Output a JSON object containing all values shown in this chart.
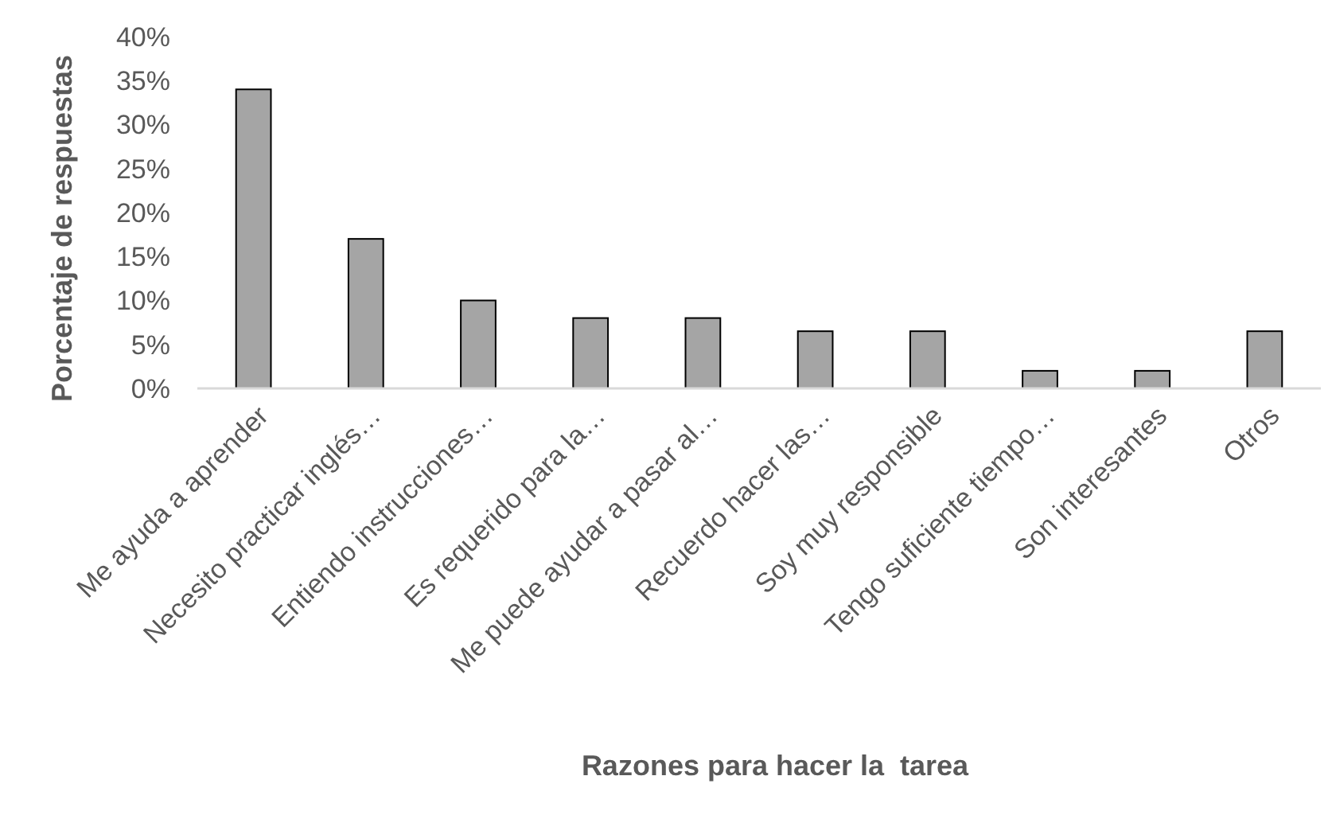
{
  "chart_data": {
    "type": "bar",
    "xlabel": "Razones para hacer la  tarea",
    "ylabel": "Porcentaje de respuestas",
    "categories": [
      "Me ayuda a aprender",
      "Necesito practicar inglés…",
      "Entiendo instrucciones…",
      "Es requerido para la…",
      "Me puede ayudar a pasar al…",
      "Recuerdo hacer las…",
      "Soy muy responsible",
      "Tengo suficiente tiempo…",
      "Son interesantes",
      "Otros"
    ],
    "values": [
      34,
      17,
      10,
      8,
      8,
      6.5,
      6.5,
      2,
      2,
      6.5
    ],
    "color": "#a5a5a5",
    "ylim": [
      0,
      40
    ],
    "yticks": [
      {
        "value": 0,
        "label": "0%"
      },
      {
        "value": 5,
        "label": "5%"
      },
      {
        "value": 10,
        "label": "10%"
      },
      {
        "value": 15,
        "label": "15%"
      },
      {
        "value": 20,
        "label": "20%"
      },
      {
        "value": 25,
        "label": "25%"
      },
      {
        "value": 30,
        "label": "30%"
      },
      {
        "value": 35,
        "label": "35%"
      },
      {
        "value": 40,
        "label": "40%"
      }
    ],
    "grid": false
  }
}
